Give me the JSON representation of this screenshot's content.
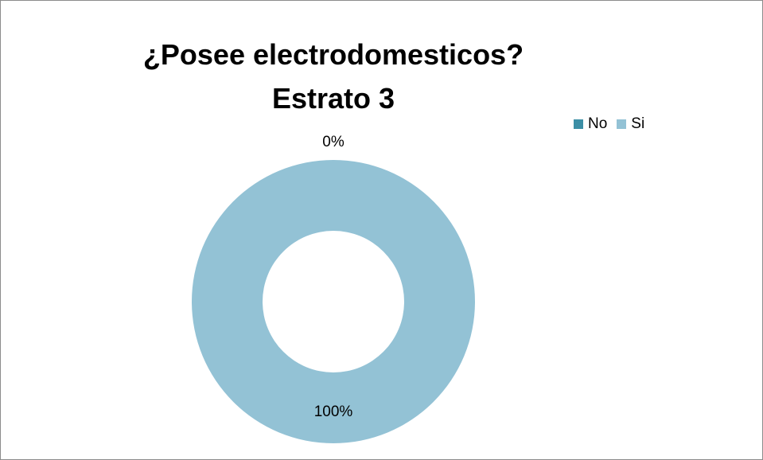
{
  "chart_data": {
    "type": "pie",
    "variant": "doughnut",
    "title_lines": [
      "¿Posee electrodomesticos?",
      "Estrato 3"
    ],
    "categories": [
      "No",
      "Si"
    ],
    "values": [
      0,
      100
    ],
    "data_labels": [
      "0%",
      "100%"
    ],
    "colors": [
      "#3c8fa6",
      "#93c2d5"
    ],
    "legend_position": "top-right"
  }
}
